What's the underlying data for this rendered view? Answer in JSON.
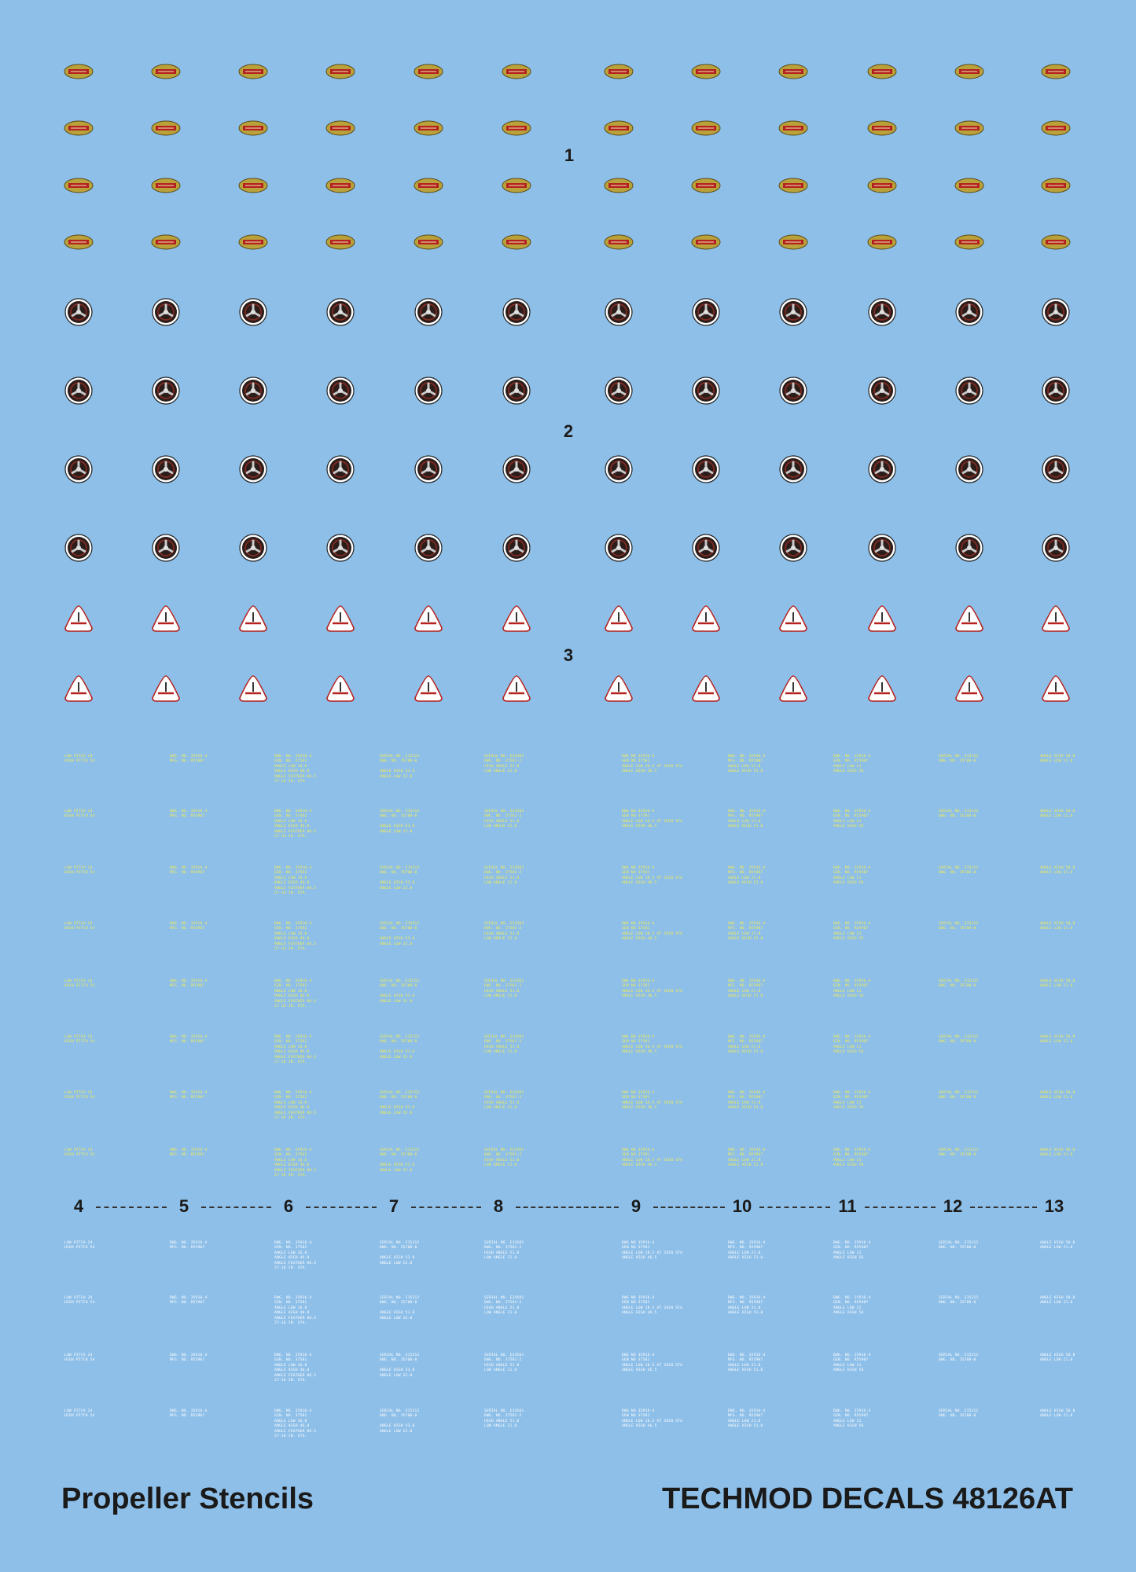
{
  "title_left": "Propeller Stencils",
  "title_right": "TECHMOD DECALS 48126AT",
  "group_labels": {
    "g1": "1",
    "g2": "2",
    "g3": "3"
  },
  "column_labels": [
    "4",
    "5",
    "6",
    "7",
    "8",
    "9",
    "10",
    "11",
    "12",
    "13"
  ],
  "colors": {
    "background": "#8ebfe8",
    "oval_fill": "#b9a23a",
    "oval_band": "#b3221f",
    "disc_ring": "#ffffff",
    "disc_fill": "#2a1d1a",
    "triangle_fill": "#ffffff",
    "triangle_border": "#b3221f",
    "stencil_yellow": "#f3ee55",
    "stencil_white": "#ffffff"
  },
  "decal_sets": {
    "oval_rows": 4,
    "disc_rows": 4,
    "triangle_rows": 2,
    "decals_per_row": 12,
    "yellow_stencil_rows": 8,
    "white_stencil_rows": 4
  },
  "stencils": [
    [
      "LOW PITCH 24",
      "HIGH PITCH 54"
    ],
    [
      "DWG. NO. 35916-4",
      "MFG. NO. R55907"
    ],
    [
      "DWG. NO. 35916-4",
      "GEN. NO. 37581",
      "ANGLE LOW 16.8",
      "ANGLE HIGH 46.8",
      "ANGLE FEATHER 86.5",
      "27-16 IN. STA."
    ],
    [
      "SERIAL NO. E15312",
      "DWG. NO. 35708-0",
      "",
      "ANGLE HIGH 53.8",
      "ANGLE LOW 22.8"
    ],
    [
      "SERIAL NO. E24501",
      "DWG. NO. 37581-2",
      "HIGH ANGLE 51.0",
      "LOW ANGLE 21.0"
    ],
    [
      "DWG NO 35916-4",
      "GEN NO 37581",
      "ANGLE LOW 18.5 AT 26IN STA",
      "ANGLE HIGH 46.5"
    ],
    [
      "DWG. NO. 35916-4",
      "MFG. NO. R55907",
      "ANGLE LOW 21.8",
      "ANGLE HIGH 51.0"
    ],
    [
      "DWG. NO. 35916-4",
      "GEN. NO. R55907",
      "ANGLE LOW 21",
      "ANGLE HIGH 56"
    ],
    [
      "SERIAL NO. E15312",
      "DWG. NO. 35708-0"
    ],
    [
      "ANGLE HIGH 50.8",
      "ANGLE LOW 21.0"
    ]
  ]
}
